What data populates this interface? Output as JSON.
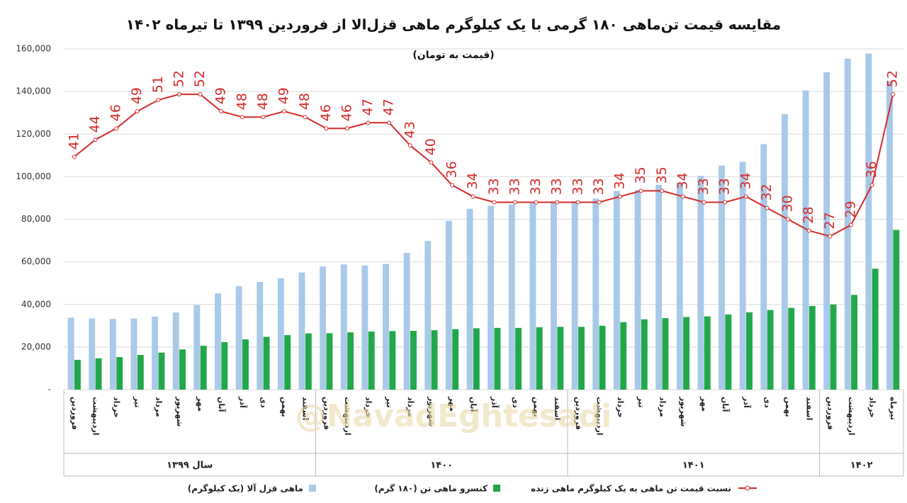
{
  "chart_data": {
    "type": "bar_line",
    "title": "مقایسه قیمت تن‌ماهی ۱۸۰ گرمی با یک کیلوگرم ماهی قزل‌الا از فروردین ۱۳۹۹ تا تیرماه ۱۴۰۲",
    "subtitle": "(قیمت به تومان)",
    "watermark": "@NavadEghtesadi",
    "categories": [
      "فروردین",
      "اردیبهشت",
      "خرداد",
      "تیر",
      "مرداد",
      "شهریور",
      "مهر",
      "آبان",
      "آذر",
      "دی",
      "بهمن",
      "اسفند",
      "فروردین",
      "اردیبهشت",
      "خرداد",
      "تیر",
      "مرداد",
      "شهریور",
      "مهر",
      "آبان",
      "آذر",
      "دی",
      "بهمن",
      "اسفند",
      "فروردین",
      "اردیبهشت",
      "خرداد",
      "تیر",
      "مرداد",
      "شهریور",
      "مهر",
      "آبان",
      "آذر",
      "دی",
      "بهمن",
      "اسفند",
      "فروردین",
      "اردیبهشت",
      "خرداد",
      "تیرماه"
    ],
    "x_groups": [
      {
        "label": "سال ۱۳۹۹",
        "size": 12
      },
      {
        "label": "۱۴۰۰",
        "size": 12
      },
      {
        "label": "۱۴۰۱",
        "size": 12
      },
      {
        "label": "۱۴۰۲",
        "size": 4
      }
    ],
    "ylim": [
      0,
      160000
    ],
    "yticks": [
      {
        "value": 0,
        "label": "-"
      },
      {
        "value": 20000,
        "label": "20,000"
      },
      {
        "value": 40000,
        "label": "40,000"
      },
      {
        "value": 60000,
        "label": "60,000"
      },
      {
        "value": 80000,
        "label": "80,000"
      },
      {
        "value": 100000,
        "label": "100,000"
      },
      {
        "value": 120000,
        "label": "120,000"
      },
      {
        "value": 140000,
        "label": "140,000"
      },
      {
        "value": 160000,
        "label": "160,000"
      }
    ],
    "y2lim": [
      0,
      60
    ],
    "grid": true,
    "series": [
      {
        "name": "ماهی قزل آلا (یک کیلوگرم)",
        "type": "bar",
        "color": "#a9c9e8",
        "values": [
          33800,
          33400,
          33200,
          33400,
          34300,
          36200,
          39700,
          45200,
          48600,
          50500,
          52300,
          55000,
          57800,
          58800,
          58300,
          59000,
          64200,
          69800,
          79300,
          84900,
          86300,
          87000,
          87500,
          87700,
          88500,
          89700,
          93300,
          93800,
          96200,
          97200,
          100400,
          105200,
          107000,
          115300,
          129300,
          140500,
          149000,
          155500,
          157800,
          144800
        ]
      },
      {
        "name": "کنسرو ماهی تن (۱۸۰ گرم)",
        "type": "bar",
        "color": "#22a84a",
        "values": [
          14000,
          14700,
          15300,
          16300,
          17400,
          18900,
          20600,
          22300,
          23600,
          24800,
          25600,
          26400,
          26500,
          26900,
          27300,
          27500,
          27600,
          27900,
          28400,
          28800,
          29000,
          29000,
          29300,
          29500,
          29500,
          30000,
          31700,
          33000,
          33600,
          34100,
          34400,
          35300,
          36300,
          37400,
          38400,
          39300,
          40000,
          44500,
          56800,
          75000
        ]
      },
      {
        "name": "نسبت قیمت تن ماهی به یک کیلوگرم ماهی زنده",
        "type": "line",
        "axis": "y2",
        "color": "#d62a2a",
        "values": [
          41,
          44,
          46,
          49,
          51,
          52,
          52,
          49,
          48,
          48,
          49,
          48,
          46,
          46,
          47,
          47,
          43,
          40,
          36,
          34,
          33,
          33,
          33,
          33,
          33,
          33,
          34,
          35,
          35,
          34,
          33,
          33,
          34,
          32,
          30,
          28,
          27,
          29,
          36,
          52
        ]
      }
    ]
  }
}
